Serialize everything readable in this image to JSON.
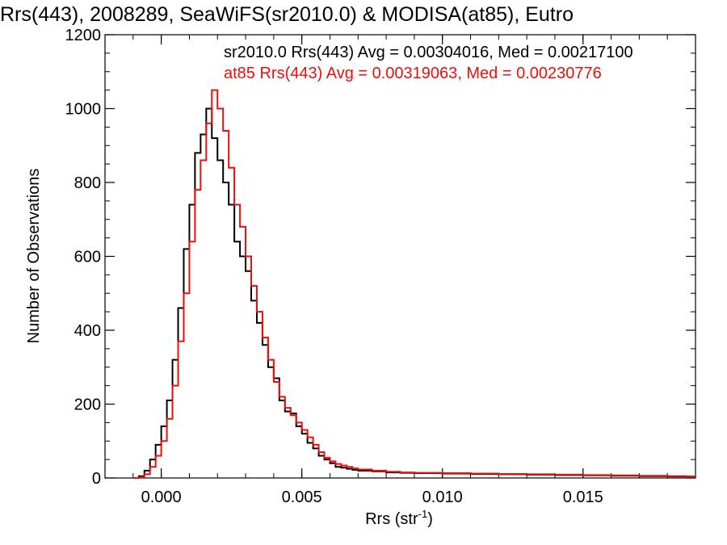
{
  "chart_data": {
    "type": "line",
    "title": "Rrs(443), 2008289, SeaWiFS(sr2010.0) & MODISA(at85), Eutro",
    "xlabel": "Rrs (str",
    "xlabel_sup": "-1",
    "xlabel_close": ")",
    "ylabel": "Number of Observations",
    "xlim": [
      -0.002,
      0.019
    ],
    "ylim": [
      0,
      1200
    ],
    "xticks": [
      0.0,
      0.005,
      0.01,
      0.015
    ],
    "xtick_labels": [
      "0.000",
      "0.005",
      "0.010",
      "0.015"
    ],
    "yticks": [
      0,
      200,
      400,
      600,
      800,
      1000,
      1200
    ],
    "ytick_labels": [
      "0",
      "200",
      "400",
      "600",
      "800",
      "1000",
      "1200"
    ],
    "grid": false,
    "legend_placement": "top-right",
    "x": [
      -0.001,
      -0.0008,
      -0.0006,
      -0.0004,
      -0.0002,
      0.0,
      0.0002,
      0.0004,
      0.0006,
      0.0008,
      0.001,
      0.0012,
      0.0014,
      0.0016,
      0.0018,
      0.002,
      0.0022,
      0.0024,
      0.0026,
      0.0028,
      0.003,
      0.0032,
      0.0034,
      0.0036,
      0.0038,
      0.004,
      0.0042,
      0.0044,
      0.0046,
      0.0048,
      0.005,
      0.0052,
      0.0054,
      0.0056,
      0.0058,
      0.006,
      0.0062,
      0.0064,
      0.0066,
      0.0068,
      0.007,
      0.0075,
      0.008,
      0.0085,
      0.009,
      0.01,
      0.011,
      0.012,
      0.013,
      0.014,
      0.015,
      0.016,
      0.017,
      0.018,
      0.0187
    ],
    "series": [
      {
        "name": "sr2010.0",
        "color": "#000000",
        "values": [
          0,
          5,
          20,
          50,
          90,
          140,
          210,
          320,
          460,
          620,
          740,
          880,
          930,
          1000,
          920,
          860,
          800,
          740,
          640,
          600,
          560,
          480,
          420,
          360,
          300,
          270,
          210,
          180,
          175,
          140,
          120,
          95,
          80,
          60,
          50,
          40,
          30,
          28,
          25,
          22,
          20,
          18,
          15,
          14,
          13,
          12,
          11,
          10,
          9,
          8,
          7,
          6,
          5,
          4,
          4
        ]
      },
      {
        "name": "at85",
        "color": "#e8100c",
        "values": [
          0,
          2,
          10,
          30,
          60,
          100,
          160,
          250,
          370,
          500,
          640,
          780,
          860,
          960,
          1050,
          1000,
          940,
          840,
          740,
          680,
          600,
          520,
          450,
          380,
          320,
          260,
          220,
          190,
          170,
          150,
          130,
          110,
          90,
          70,
          55,
          45,
          38,
          34,
          30,
          26,
          23,
          20,
          17,
          15,
          14,
          13,
          12,
          11,
          10,
          9,
          8,
          7,
          6,
          5,
          4
        ]
      }
    ],
    "annotations": [
      {
        "text": "sr2010.0 Rrs(443) Avg = 0.00304016, Med = 0.00217100",
        "color": "#000000"
      },
      {
        "text": "at85 Rrs(443) Avg = 0.00319063, Med = 0.00230776",
        "color": "#e8100c"
      }
    ]
  }
}
